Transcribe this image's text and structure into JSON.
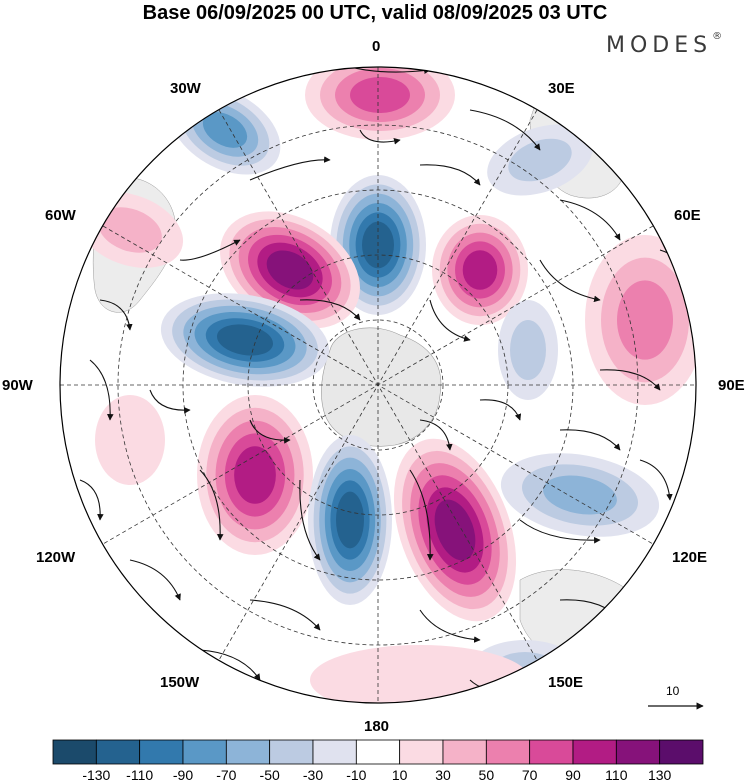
{
  "title": "Base 06/09/2025 00 UTC, valid 08/09/2025 03 UTC",
  "brand": {
    "text": "MODES",
    "mark": "®"
  },
  "longitude_labels": {
    "lon_0": "0",
    "lon_30e": "30E",
    "lon_60e": "60E",
    "lon_90e": "90E",
    "lon_120e": "120E",
    "lon_150e": "150E",
    "lon_180": "180",
    "lon_150w": "150W",
    "lon_120w": "120W",
    "lon_90w": "90W",
    "lon_60w": "60W",
    "lon_30w": "30W"
  },
  "wind_reference": {
    "value": "10"
  },
  "colorbar": {
    "labels": [
      "-130",
      "-110",
      "-90",
      "-70",
      "-50",
      "-30",
      "-10",
      "10",
      "30",
      "50",
      "70",
      "90",
      "110",
      "130"
    ],
    "colors": [
      "#1b4a6b",
      "#24628f",
      "#3279ad",
      "#5a98c6",
      "#8db4d8",
      "#bccbe2",
      "#e0e2ef",
      "#ffffff",
      "#fbdbe3",
      "#f5b2c8",
      "#ec80ae",
      "#d94a99",
      "#b21c84",
      "#86127a",
      "#5b0d6b"
    ]
  },
  "map_colors": {
    "neutral_fill": "#f0f0f0",
    "gridline": "#333333",
    "arrow": "#111111"
  }
}
